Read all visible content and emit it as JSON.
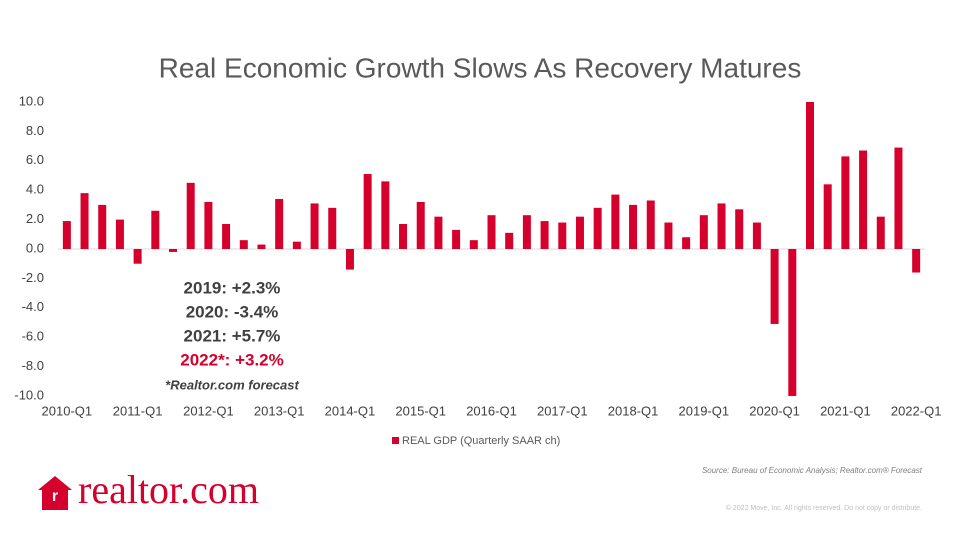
{
  "chart_data": {
    "type": "bar",
    "title": "Real Economic Growth Slows As Recovery Matures",
    "categories": [
      "2010-Q1",
      null,
      null,
      null,
      "2011-Q1",
      null,
      null,
      null,
      "2012-Q1",
      null,
      null,
      null,
      "2013-Q1",
      null,
      null,
      null,
      "2014-Q1",
      null,
      null,
      null,
      "2015-Q1",
      null,
      null,
      null,
      "2016-Q1",
      null,
      null,
      null,
      "2017-Q1",
      null,
      null,
      null,
      "2018-Q1",
      null,
      null,
      null,
      "2019-Q1",
      null,
      null,
      null,
      "2020-Q1",
      null,
      null,
      null,
      "2021-Q1",
      null,
      null,
      null,
      "2022-Q1"
    ],
    "series": [
      {
        "name": "REAL GDP (Quarterly SAAR ch)",
        "color": "#d6002c",
        "values": [
          1.9,
          3.8,
          3.0,
          2.0,
          -1.0,
          2.6,
          -0.2,
          4.5,
          3.2,
          1.7,
          0.6,
          0.3,
          3.4,
          0.5,
          3.1,
          2.8,
          -1.4,
          5.1,
          4.6,
          1.7,
          3.2,
          2.2,
          1.3,
          0.6,
          2.3,
          1.1,
          2.3,
          1.9,
          1.8,
          2.2,
          2.8,
          3.7,
          3.0,
          3.3,
          1.8,
          0.8,
          2.3,
          3.1,
          2.7,
          1.8,
          -5.1,
          -10.0,
          10.0,
          4.4,
          6.3,
          6.7,
          2.2,
          6.9,
          -1.6
        ]
      }
    ],
    "ylim": [
      -10,
      10
    ],
    "yticks": [
      {
        "value": -10,
        "label": "-10.0"
      },
      {
        "value": -8,
        "label": "-8.0"
      },
      {
        "value": -6,
        "label": "-6.0"
      },
      {
        "value": -4,
        "label": "-4.0"
      },
      {
        "value": -2,
        "label": "-2.0"
      },
      {
        "value": 0,
        "label": "0.0"
      },
      {
        "value": 2,
        "label": "2.0"
      },
      {
        "value": 4,
        "label": "4.0"
      },
      {
        "value": 6,
        "label": "6.0"
      },
      {
        "value": 8,
        "label": "8.0"
      },
      {
        "value": 10,
        "label": "10.0"
      }
    ],
    "grid": false,
    "legend": "bottom",
    "annotations": [
      {
        "text": "2019: +2.3%",
        "color": "#404040"
      },
      {
        "text": "2020: -3.4%",
        "color": "#404040"
      },
      {
        "text": "2021: +5.7%",
        "color": "#404040"
      },
      {
        "text": "2022*: +3.2%",
        "color": "#d6002c"
      },
      {
        "text": "*Realtor.com forecast",
        "color": "#404040"
      }
    ]
  },
  "footer": {
    "source": "Source: Bureau of Economic Analysis; Realtor.com® Forecast",
    "copyright": "© 2022 Move, Inc. All rights reserved. Do not copy or distribute.",
    "logo": "realtor.com"
  }
}
